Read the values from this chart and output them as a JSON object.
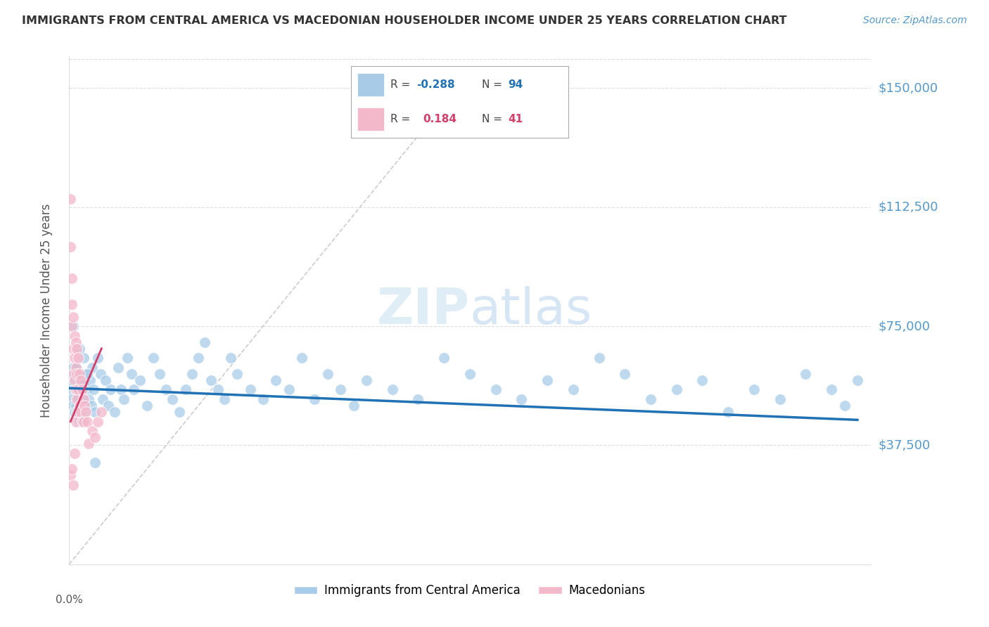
{
  "title": "IMMIGRANTS FROM CENTRAL AMERICA VS MACEDONIAN HOUSEHOLDER INCOME UNDER 25 YEARS CORRELATION CHART",
  "source": "Source: ZipAtlas.com",
  "ylabel": "Householder Income Under 25 years",
  "ytick_labels": [
    "$37,500",
    "$75,000",
    "$112,500",
    "$150,000"
  ],
  "ytick_values": [
    37500,
    75000,
    112500,
    150000
  ],
  "ylim": [
    0,
    160000
  ],
  "xlim": [
    0.0,
    0.62
  ],
  "legend_blue_r": "-0.288",
  "legend_blue_n": "94",
  "legend_pink_r": "0.184",
  "legend_pink_n": "41",
  "legend_label_blue": "Immigrants from Central America",
  "legend_label_pink": "Macedonians",
  "color_blue": "#a8cce8",
  "color_pink": "#f4b8cb",
  "color_trend_blue": "#2171b5",
  "color_trend_pink": "#d43f6a",
  "color_ref_line": "#cccccc",
  "background": "#ffffff",
  "title_color": "#333333",
  "source_color": "#5599cc",
  "yaxis_label_color": "#555555",
  "ytick_color": "#5599cc",
  "grid_color": "#dddddd",
  "watermark_color": "#d8eaf7",
  "blue_x": [
    0.001,
    0.002,
    0.002,
    0.003,
    0.003,
    0.004,
    0.004,
    0.005,
    0.005,
    0.006,
    0.006,
    0.007,
    0.007,
    0.008,
    0.008,
    0.009,
    0.009,
    0.01,
    0.01,
    0.011,
    0.011,
    0.012,
    0.012,
    0.013,
    0.014,
    0.015,
    0.016,
    0.017,
    0.018,
    0.019,
    0.02,
    0.022,
    0.024,
    0.026,
    0.028,
    0.03,
    0.032,
    0.035,
    0.038,
    0.04,
    0.042,
    0.045,
    0.048,
    0.05,
    0.055,
    0.06,
    0.065,
    0.07,
    0.075,
    0.08,
    0.085,
    0.09,
    0.095,
    0.1,
    0.105,
    0.11,
    0.115,
    0.12,
    0.125,
    0.13,
    0.14,
    0.15,
    0.16,
    0.17,
    0.18,
    0.19,
    0.2,
    0.21,
    0.22,
    0.23,
    0.25,
    0.27,
    0.29,
    0.31,
    0.33,
    0.35,
    0.37,
    0.39,
    0.41,
    0.43,
    0.45,
    0.47,
    0.49,
    0.51,
    0.53,
    0.55,
    0.57,
    0.59,
    0.6,
    0.61,
    0.003,
    0.008,
    0.014,
    0.02
  ],
  "blue_y": [
    55000,
    52000,
    58000,
    50000,
    62000,
    48000,
    60000,
    55000,
    50000,
    62000,
    48000,
    55000,
    52000,
    58000,
    45000,
    55000,
    60000,
    52000,
    58000,
    50000,
    65000,
    55000,
    48000,
    60000,
    55000,
    52000,
    58000,
    50000,
    62000,
    55000,
    48000,
    65000,
    60000,
    52000,
    58000,
    50000,
    55000,
    48000,
    62000,
    55000,
    52000,
    65000,
    60000,
    55000,
    58000,
    50000,
    65000,
    60000,
    55000,
    52000,
    48000,
    55000,
    60000,
    65000,
    70000,
    58000,
    55000,
    52000,
    65000,
    60000,
    55000,
    52000,
    58000,
    55000,
    65000,
    52000,
    60000,
    55000,
    50000,
    58000,
    55000,
    52000,
    65000,
    60000,
    55000,
    52000,
    58000,
    55000,
    65000,
    60000,
    52000,
    55000,
    58000,
    48000,
    55000,
    52000,
    60000,
    55000,
    50000,
    58000,
    75000,
    68000,
    60000,
    32000
  ],
  "pink_x": [
    0.001,
    0.001,
    0.001,
    0.002,
    0.002,
    0.002,
    0.002,
    0.003,
    0.003,
    0.003,
    0.003,
    0.004,
    0.004,
    0.004,
    0.004,
    0.005,
    0.005,
    0.005,
    0.005,
    0.006,
    0.006,
    0.006,
    0.007,
    0.007,
    0.007,
    0.008,
    0.008,
    0.009,
    0.009,
    0.01,
    0.01,
    0.011,
    0.011,
    0.012,
    0.013,
    0.014,
    0.015,
    0.018,
    0.02,
    0.022,
    0.025
  ],
  "pink_y": [
    115000,
    100000,
    28000,
    90000,
    82000,
    75000,
    30000,
    78000,
    68000,
    60000,
    25000,
    72000,
    65000,
    58000,
    35000,
    70000,
    62000,
    55000,
    45000,
    68000,
    60000,
    52000,
    65000,
    55000,
    48000,
    60000,
    50000,
    58000,
    48000,
    55000,
    45000,
    52000,
    45000,
    50000,
    48000,
    45000,
    38000,
    42000,
    40000,
    45000,
    48000
  ],
  "ref_line_x": [
    0.0,
    0.3
  ],
  "ref_line_y": [
    0,
    150000
  ]
}
